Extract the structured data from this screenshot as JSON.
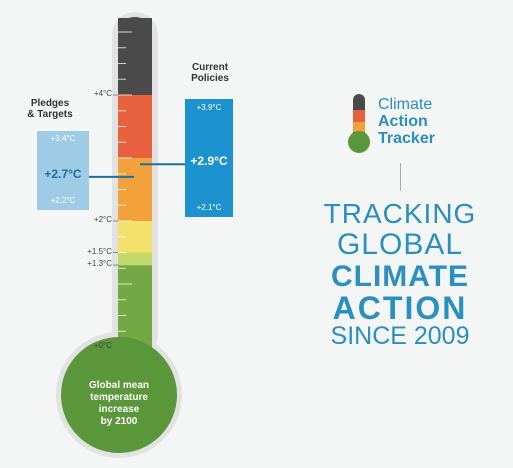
{
  "thermometer": {
    "ticks": [
      {
        "label": "+4°C",
        "value": 4
      },
      {
        "label": "+2°C",
        "value": 2
      },
      {
        "label": "+1.5°C",
        "value": 1.5
      },
      {
        "label": "+1.3°C",
        "value": 1.3
      },
      {
        "label": "+0°C",
        "value": 0
      }
    ],
    "bands": [
      {
        "from": 0,
        "to": 1.3,
        "color": "#74a845"
      },
      {
        "from": 1.3,
        "to": 1.5,
        "color": "#c5d96b"
      },
      {
        "from": 1.5,
        "to": 2,
        "color": "#f2e16a"
      },
      {
        "from": 2,
        "to": 3,
        "color": "#f3a23b"
      },
      {
        "from": 3,
        "to": 4,
        "color": "#e8613f"
      },
      {
        "from": 4,
        "to": 5.4,
        "color": "#4a4a4a"
      }
    ],
    "bulb_color": "#5a963a",
    "bulb_text": [
      "Global mean",
      "temperature",
      "increase",
      "by 2100"
    ]
  },
  "pledges": {
    "header": [
      "Pledges",
      "& Targets"
    ],
    "high": "+3.4°C",
    "mid": "+2.7°C",
    "low": "+2.2°C",
    "high_value": 3.4,
    "mid_value": 2.7,
    "low_value": 2.2,
    "color": "#9ecbe6",
    "text_color": "#ffffff",
    "mid_text_color": "#1b6f9b"
  },
  "current": {
    "header": [
      "Current",
      "Policies"
    ],
    "high": "+3.9°C",
    "mid": "+2.9°C",
    "low": "+2.1°C",
    "high_value": 3.9,
    "mid_value": 2.9,
    "low_value": 2.1,
    "color": "#1c93cf"
  },
  "logo": {
    "lines": [
      "Climate",
      "Action",
      "Tracker"
    ],
    "text_color": "#2b8fbf"
  },
  "tagline": {
    "lines": [
      "TRACKING",
      "GLOBAL",
      "CLIMATE",
      "ACTION",
      "SINCE 2009"
    ],
    "color": "#2b8fbf"
  }
}
